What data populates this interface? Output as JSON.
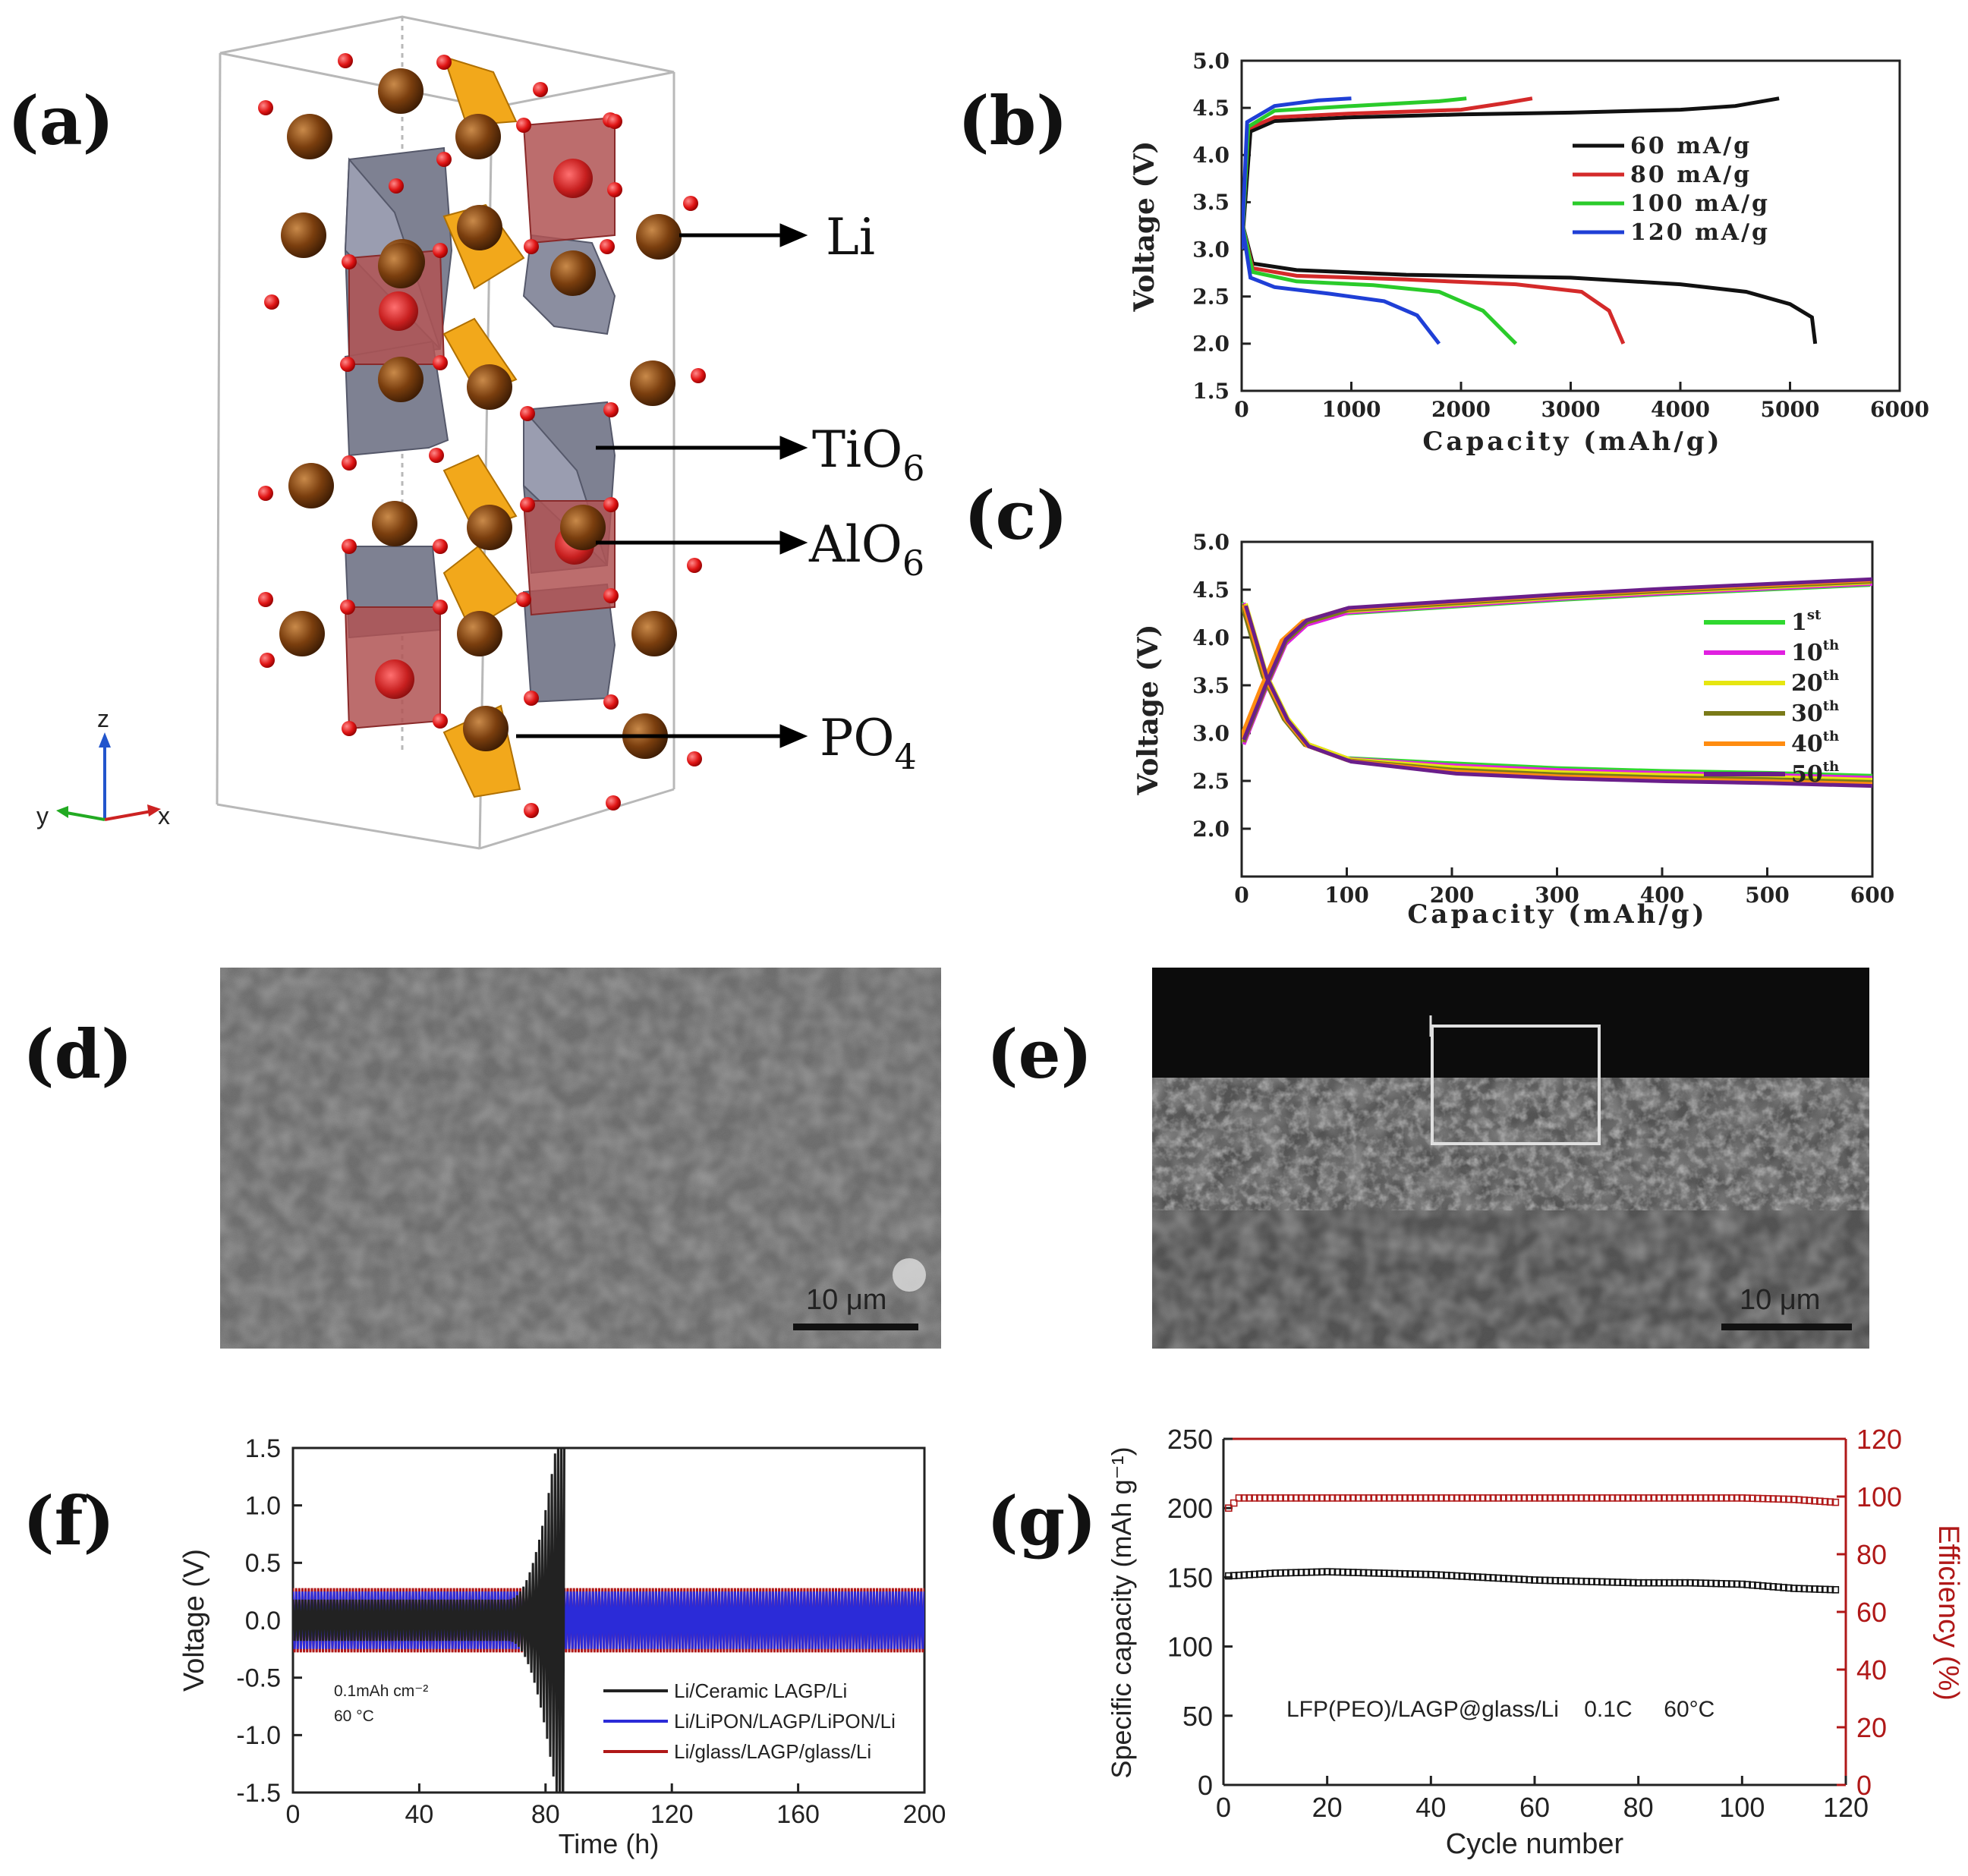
{
  "panels": {
    "a": "(a)",
    "b": "(b)",
    "c": "(c)",
    "d": "(d)",
    "e": "(e)",
    "f": "(f)",
    "g": "(g)"
  },
  "structure": {
    "labels": [
      {
        "main": "Li",
        "sub": ""
      },
      {
        "main": "TiO",
        "sub": "6"
      },
      {
        "main": "AlO",
        "sub": "6"
      },
      {
        "main": "PO",
        "sub": "4"
      }
    ],
    "axes": {
      "z": "z",
      "y": "y",
      "x": "x"
    },
    "colors": {
      "li": "#7a3e0e",
      "ti": "#7e8192",
      "al": "#b05454",
      "po": "#f2a81b",
      "o": "#e01515"
    }
  },
  "sem": {
    "d_scale": "10 μm",
    "e_scale": "10 μm"
  },
  "chart_data": [
    {
      "id": "b",
      "type": "line",
      "xlabel": "Capacity (mAh/g)",
      "ylabel": "Voltage (V)",
      "xlim": [
        0,
        6000
      ],
      "ylim": [
        1.5,
        5.0
      ],
      "xticks": [
        "0",
        "1000",
        "2000",
        "3000",
        "4000",
        "5000",
        "6000"
      ],
      "yticks": [
        "1.5",
        "2.0",
        "2.5",
        "3.0",
        "3.5",
        "4.0",
        "4.5",
        "5.0"
      ],
      "series": [
        {
          "name": "60 mA/g",
          "color": "#111111",
          "charge": [
            [
              0,
              3.0
            ],
            [
              80,
              4.25
            ],
            [
              300,
              4.36
            ],
            [
              1000,
              4.4
            ],
            [
              2000,
              4.43
            ],
            [
              3000,
              4.45
            ],
            [
              4000,
              4.48
            ],
            [
              4500,
              4.52
            ],
            [
              4900,
              4.6
            ]
          ],
          "discharge": [
            [
              0,
              3.3
            ],
            [
              100,
              2.85
            ],
            [
              500,
              2.78
            ],
            [
              1500,
              2.73
            ],
            [
              3000,
              2.7
            ],
            [
              4000,
              2.63
            ],
            [
              4600,
              2.55
            ],
            [
              5000,
              2.42
            ],
            [
              5200,
              2.28
            ],
            [
              5230,
              2.0
            ]
          ]
        },
        {
          "name": "80 mA/g",
          "color": "#d42a2a",
          "charge": [
            [
              0,
              3.0
            ],
            [
              60,
              4.28
            ],
            [
              300,
              4.4
            ],
            [
              1000,
              4.44
            ],
            [
              2000,
              4.48
            ],
            [
              2400,
              4.55
            ],
            [
              2650,
              4.6
            ]
          ],
          "discharge": [
            [
              0,
              3.3
            ],
            [
              100,
              2.8
            ],
            [
              500,
              2.72
            ],
            [
              1500,
              2.68
            ],
            [
              2500,
              2.63
            ],
            [
              3100,
              2.55
            ],
            [
              3350,
              2.35
            ],
            [
              3480,
              2.0
            ]
          ]
        },
        {
          "name": "100 mA/g",
          "color": "#2acb2a",
          "charge": [
            [
              0,
              3.0
            ],
            [
              60,
              4.3
            ],
            [
              300,
              4.47
            ],
            [
              1000,
              4.52
            ],
            [
              1800,
              4.57
            ],
            [
              2050,
              4.6
            ]
          ],
          "discharge": [
            [
              0,
              3.3
            ],
            [
              100,
              2.76
            ],
            [
              500,
              2.66
            ],
            [
              1200,
              2.62
            ],
            [
              1800,
              2.55
            ],
            [
              2200,
              2.35
            ],
            [
              2500,
              2.0
            ]
          ]
        },
        {
          "name": "120 mA/g",
          "color": "#1f3fd6",
          "charge": [
            [
              0,
              3.0
            ],
            [
              50,
              4.35
            ],
            [
              300,
              4.52
            ],
            [
              700,
              4.58
            ],
            [
              1000,
              4.6
            ]
          ],
          "discharge": [
            [
              0,
              3.3
            ],
            [
              80,
              2.7
            ],
            [
              300,
              2.6
            ],
            [
              800,
              2.53
            ],
            [
              1300,
              2.45
            ],
            [
              1600,
              2.3
            ],
            [
              1800,
              2.0
            ]
          ]
        }
      ]
    },
    {
      "id": "c",
      "type": "line",
      "xlabel": "Capacity (mAh/g)",
      "ylabel": "Voltage (V)",
      "xlim": [
        0,
        600
      ],
      "ylim": [
        1.5,
        5.0
      ],
      "xticks": [
        "0",
        "100",
        "200",
        "300",
        "400",
        "500",
        "600"
      ],
      "yticks": [
        "2.0",
        "2.5",
        "3.0",
        "3.5",
        "4.0",
        "4.5",
        "5.0"
      ],
      "series": [
        {
          "name": "1",
          "sup": "st",
          "color": "#2fd82f"
        },
        {
          "name": "10",
          "sup": "th",
          "color": "#e020e0"
        },
        {
          "name": "20",
          "sup": "th",
          "color": "#e6e610"
        },
        {
          "name": "30",
          "sup": "th",
          "color": "#7a7a18"
        },
        {
          "name": "40",
          "sup": "th",
          "color": "#ff8c10"
        },
        {
          "name": "50",
          "sup": "th",
          "color": "#6a1e8a"
        }
      ],
      "charge": [
        [
          0,
          2.9
        ],
        [
          20,
          3.45
        ],
        [
          40,
          3.95
        ],
        [
          60,
          4.15
        ],
        [
          100,
          4.28
        ],
        [
          200,
          4.35
        ],
        [
          300,
          4.42
        ],
        [
          400,
          4.48
        ],
        [
          500,
          4.53
        ],
        [
          600,
          4.58
        ]
      ],
      "discharge": [
        [
          0,
          4.35
        ],
        [
          20,
          3.6
        ],
        [
          40,
          3.15
        ],
        [
          60,
          2.88
        ],
        [
          100,
          2.72
        ],
        [
          200,
          2.63
        ],
        [
          300,
          2.58
        ],
        [
          400,
          2.55
        ],
        [
          500,
          2.53
        ],
        [
          600,
          2.5
        ]
      ]
    },
    {
      "id": "f",
      "type": "line",
      "xlabel": "Time (h)",
      "ylabel": "Voltage (V)",
      "xlim": [
        0,
        200
      ],
      "ylim": [
        -1.5,
        1.5
      ],
      "xticks": [
        "0",
        "40",
        "80",
        "120",
        "160",
        "200"
      ],
      "yticks": [
        "1.5",
        "1.0",
        "0.5",
        "0.0",
        "-0.5",
        "-1.0",
        "-1.5"
      ],
      "annotation": [
        "0.1mAh cm⁻²",
        "60 °C"
      ],
      "series": [
        {
          "name": "Li/Ceramic LAGP/Li",
          "color": "#222222",
          "amplitude": 0.18,
          "diverge_start": 68,
          "end": 86
        },
        {
          "name": "Li/LiPON/LAGP/LiPON/Li",
          "color": "#2b2bd8",
          "amplitude": 0.25
        },
        {
          "name": "Li/glass/LAGP/glass/Li",
          "color": "#b01818",
          "amplitude": 0.28
        }
      ]
    },
    {
      "id": "g",
      "type": "scatter",
      "xlabel": "Cycle number",
      "ylabel": "Specific capacity (mAh g⁻¹)",
      "y2label": "Efficiency (%)",
      "xlim": [
        0,
        120
      ],
      "ylim": [
        0,
        250
      ],
      "y2lim": [
        0,
        120
      ],
      "xticks": [
        "0",
        "20",
        "40",
        "60",
        "80",
        "100",
        "120"
      ],
      "yticks": [
        "0",
        "50",
        "100",
        "150",
        "200",
        "250"
      ],
      "y2ticks": [
        "0",
        "20",
        "40",
        "60",
        "80",
        "100",
        "120"
      ],
      "annotation": "LFP(PEO)/LAGP@glass/Li    0.1C     60°C",
      "series": [
        {
          "name": "capacity",
          "color": "#111111",
          "axis": "left",
          "points": [
            [
              1,
              151
            ],
            [
              10,
              153
            ],
            [
              20,
              154
            ],
            [
              30,
              153
            ],
            [
              40,
              152
            ],
            [
              50,
              150
            ],
            [
              60,
              148
            ],
            [
              70,
              147
            ],
            [
              80,
              146
            ],
            [
              90,
              146
            ],
            [
              100,
              145
            ],
            [
              110,
              142
            ],
            [
              118,
              141
            ]
          ]
        },
        {
          "name": "efficiency",
          "color": "#b01818",
          "axis": "right",
          "points": [
            [
              1,
              96
            ],
            [
              3,
              99.5
            ],
            [
              20,
              99.5
            ],
            [
              40,
              99.5
            ],
            [
              60,
              99.5
            ],
            [
              80,
              99.5
            ],
            [
              100,
              99.5
            ],
            [
              110,
              99
            ],
            [
              118,
              98
            ]
          ]
        }
      ]
    }
  ]
}
